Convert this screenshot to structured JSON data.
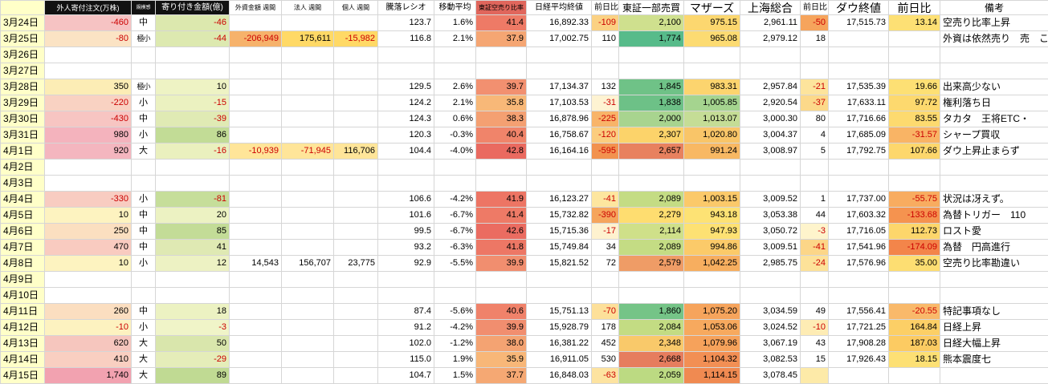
{
  "sheet": {
    "columns": [
      {
        "key": "date",
        "label": "",
        "hbg": "#ffffc8",
        "hsize": 11
      },
      {
        "key": "foreign-orders",
        "label": "外人寄付注文(万株)",
        "hbg": "#111111",
        "hfg": "#ffffff",
        "hsize": 9
      },
      {
        "key": "scale",
        "label": "規模感",
        "hbg": "#111111",
        "hfg": "#ffffff",
        "hsize": 6
      },
      {
        "key": "opening-amount",
        "label": "寄り付き金額(億)",
        "hbg": "#111111",
        "hfg": "#ffffff",
        "hsize": 10
      },
      {
        "key": "foreign-weekly",
        "label": "外資金額 週間",
        "hsize": 8
      },
      {
        "key": "corporate-weekly",
        "label": "法人 週間",
        "hsize": 8
      },
      {
        "key": "individual-weekly",
        "label": "個人 週間",
        "hsize": 8
      },
      {
        "key": "updown-ratio",
        "label": "騰落レシオ",
        "hsize": 10
      },
      {
        "key": "moving-average",
        "label": "移動平均",
        "hsize": 10
      },
      {
        "key": "short-sell-ratio",
        "label": "東証空売り比率",
        "hbg": "#e0665c",
        "hsize": 8
      },
      {
        "key": "nikkei-close",
        "label": "日経平均終値",
        "hsize": 10
      },
      {
        "key": "nikkei-change",
        "label": "前日比",
        "hsize": 10
      },
      {
        "key": "tse1-volume",
        "label": "東証一部売買",
        "hsize": 12
      },
      {
        "key": "mothers",
        "label": "マザーズ",
        "hsize": 14
      },
      {
        "key": "shanghai",
        "label": "上海総合",
        "hsize": 14
      },
      {
        "key": "shanghai-change",
        "label": "前日比",
        "hsize": 10
      },
      {
        "key": "dow-close",
        "label": "ダウ終値",
        "hsize": 14
      },
      {
        "key": "dow-change",
        "label": "前日比",
        "hsize": 14
      },
      {
        "key": "notes",
        "label": "備考",
        "hsize": 12
      }
    ],
    "rows": [
      [
        "3月24日",
        [
          "-460",
          "#f6c3c3",
          "#cc0000"
        ],
        "中",
        [
          "-46",
          "#dce8ae",
          "#cc0000"
        ],
        "",
        "",
        "",
        "123.7",
        "1.6%",
        [
          "41.4",
          "#ee7a66"
        ],
        "16,892.33",
        [
          "-109",
          "#fbd183",
          "#cc0000"
        ],
        [
          "2,100",
          "#cfe08e"
        ],
        [
          "975.15",
          "#fcd76f"
        ],
        "2,961.11",
        [
          "-50",
          "#f6a45c",
          "#cc0000"
        ],
        "17,515.73",
        [
          "13.14",
          "#fde074"
        ],
        "空売り比率上昇"
      ],
      [
        "3月25日",
        [
          "-80",
          "#fbe3c4",
          "#cc0000"
        ],
        [
          "極小",
          null,
          null,
          1
        ],
        [
          "-44",
          "#dde9b0",
          "#cc0000"
        ],
        [
          "-206,949",
          "#f6b26b",
          "#cc0000"
        ],
        [
          "175,611",
          "#ffd966"
        ],
        [
          "-15,982",
          "#ffd966",
          "#cc0000"
        ],
        "116.8",
        "2.1%",
        [
          "37.9",
          "#f5a673"
        ],
        "17,002.75",
        "110",
        [
          "1,774",
          "#57bb8a"
        ],
        [
          "965.08",
          "#fcdb72"
        ],
        "2,979.12",
        "18",
        "",
        "",
        [
          "外資は依然売り　売　これ大丈夫",
          null,
          null,
          1
        ]
      ],
      [
        "3月26日",
        "",
        "",
        "",
        "",
        "",
        "",
        "",
        "",
        "",
        "",
        "",
        "",
        "",
        "",
        "",
        "",
        "",
        ""
      ],
      [
        "3月27日",
        "",
        "",
        "",
        "",
        "",
        "",
        "",
        "",
        "",
        "",
        "",
        "",
        "",
        "",
        "",
        "",
        "",
        ""
      ],
      [
        "3月28日",
        [
          "350",
          "#fcedb5"
        ],
        [
          "極小",
          null,
          null,
          1
        ],
        [
          "10",
          "#eef3c4"
        ],
        "",
        "",
        "",
        "129.5",
        "2.6%",
        [
          "39.7",
          "#f29070"
        ],
        "17,134.37",
        "132",
        [
          "1,845",
          "#6fc287"
        ],
        [
          "983.31",
          "#fcd46e"
        ],
        "2,957.84",
        [
          "-21",
          "#fde49c",
          "#cc0000"
        ],
        "17,535.39",
        [
          "19.66",
          "#fde074"
        ],
        "出来高少ない"
      ],
      [
        "3月29日",
        [
          "-220",
          "#f9d2c2",
          "#cc0000"
        ],
        "小",
        [
          "-15",
          "#ebf1c0",
          "#cc0000"
        ],
        "",
        "",
        "",
        "124.2",
        "2.1%",
        [
          "35.8",
          "#f8b878"
        ],
        "17,103.53",
        [
          "-31",
          "#fef3d2",
          "#cc0000"
        ],
        [
          "1,838",
          "#6dc187"
        ],
        [
          "1,005.85",
          "#a5d48f"
        ],
        "2,920.54",
        [
          "-37",
          "#fcd98a",
          "#cc0000"
        ],
        "17,633.11",
        [
          "97.72",
          "#fdd96e"
        ],
        "権利落ち日"
      ],
      [
        "3月30日",
        [
          "-430",
          "#f7c5c2",
          "#cc0000"
        ],
        "中",
        [
          "-39",
          "#e0eab4",
          "#cc0000"
        ],
        "",
        "",
        "",
        "124.3",
        "0.6%",
        [
          "38.3",
          "#f4a072"
        ],
        "16,878.96",
        [
          "-225",
          "#f8b469",
          "#cc0000"
        ],
        [
          "2,000",
          "#a8d48f"
        ],
        [
          "1,013.07",
          "#c5dd96"
        ],
        "3,000.30",
        "80",
        "17,716.66",
        [
          "83.55",
          "#fdda6f"
        ],
        "タカタ　王将ETC・"
      ],
      [
        "3月31日",
        [
          "980",
          "#f4b3bd"
        ],
        "小",
        [
          "86",
          "#c2dc96"
        ],
        "",
        "",
        "",
        "120.3",
        "-0.3%",
        [
          "40.4",
          "#f0846a"
        ],
        "16,758.67",
        [
          "-120",
          "#fbcd7f",
          "#cc0000"
        ],
        [
          "2,307",
          "#fcd36a"
        ],
        [
          "1,020.80",
          "#f9c568"
        ],
        "3,004.37",
        "4",
        "17,685.09",
        [
          "-31.57",
          "#f9b465",
          "#cc0000"
        ],
        "シャープ買収"
      ],
      [
        "4月1日",
        [
          "920",
          "#f4b6bf"
        ],
        "大",
        [
          "-16",
          "#eaf0be",
          "#cc0000"
        ],
        [
          "-10,939",
          "#ffe599",
          "#cc0000"
        ],
        [
          "-71,945",
          "#ffe599",
          "#cc0000"
        ],
        [
          "116,706",
          "#ffe599"
        ],
        "104.4",
        "-4.0%",
        [
          "42.8",
          "#ea6a60"
        ],
        "16,164.16",
        [
          "-595",
          "#f2924f",
          "#cc0000"
        ],
        [
          "2,657",
          "#e8815f"
        ],
        [
          "991.24",
          "#f8b863"
        ],
        "3,008.97",
        "5",
        "17,792.75",
        [
          "107.66",
          "#fdd76c"
        ],
        "ダウ上昇止まらず"
      ],
      [
        "4月2日",
        "",
        "",
        "",
        "",
        "",
        "",
        "",
        "",
        "",
        "",
        "",
        "",
        "",
        "",
        "",
        "",
        "",
        ""
      ],
      [
        "4月3日",
        "",
        "",
        "",
        "",
        "",
        "",
        "",
        "",
        "",
        "",
        "",
        "",
        "",
        "",
        "",
        "",
        "",
        ""
      ],
      [
        "4月4日",
        [
          "-330",
          "#f8ccc1",
          "#cc0000"
        ],
        "小",
        [
          "-81",
          "#c6de9a",
          "#cc0000"
        ],
        "",
        "",
        "",
        "106.6",
        "-4.2%",
        [
          "41.9",
          "#ed7564"
        ],
        "16,123.27",
        [
          "-41",
          "#fde69f",
          "#cc0000"
        ],
        [
          "2,089",
          "#c4dc84"
        ],
        [
          "1,003.15",
          "#fbc96a"
        ],
        "3,009.52",
        "1",
        "17,737.00",
        [
          "-55.75",
          "#f8ac60",
          "#cc0000"
        ],
        "状況は冴えず。"
      ],
      [
        "4月5日",
        [
          "10",
          "#fdf3c0"
        ],
        "中",
        [
          "20",
          "#ecf2c2"
        ],
        "",
        "",
        "",
        "101.6",
        "-6.7%",
        [
          "41.4",
          "#ee7a66"
        ],
        "15,732.82",
        [
          "-390",
          "#f5a55c",
          "#cc0000"
        ],
        [
          "2,279",
          "#fedd70"
        ],
        [
          "943.18",
          "#fde274"
        ],
        "3,053.38",
        "44",
        "17,603.32",
        [
          "-133.68",
          "#f5934f",
          "#cc0000"
        ],
        "為替トリガー　110"
      ],
      [
        "4月6日",
        [
          "250",
          "#fbdfc0"
        ],
        "中",
        [
          "85",
          "#c3dc97"
        ],
        "",
        "",
        "",
        "99.5",
        "-6.7%",
        [
          "42.6",
          "#eb6c61"
        ],
        "15,715.36",
        [
          "-17",
          "#fef2cf",
          "#cc0000"
        ],
        [
          "2,114",
          "#cfe089"
        ],
        [
          "947.93",
          "#fde173"
        ],
        "3,050.72",
        [
          "-3",
          "#fef4cc",
          "#cc0000"
        ],
        "17,716.05",
        [
          "112.73",
          "#fdd66b"
        ],
        "ロスト愛"
      ],
      [
        "4月7日",
        [
          "470",
          "#f9cbc0"
        ],
        "中",
        [
          "41",
          "#dfe9b3"
        ],
        "",
        "",
        "",
        "93.2",
        "-6.3%",
        [
          "41.8",
          "#ed7765"
        ],
        "15,749.84",
        "34",
        [
          "2,089",
          "#c4dc84"
        ],
        [
          "994.86",
          "#fbca69"
        ],
        "3,009.51",
        [
          "-41",
          "#fcd688",
          "#cc0000"
        ],
        "17,541.96",
        [
          "-174.09",
          "#f3854a",
          "#cc0000"
        ],
        "為替　円高進行"
      ],
      [
        "4月8日",
        [
          "10",
          "#fdf3c0"
        ],
        "小",
        [
          "12",
          "#edf2c3"
        ],
        "14,543",
        "156,707",
        "23,775",
        "92.9",
        "-5.5%",
        [
          "39.9",
          "#f18e6f"
        ],
        "15,821.52",
        "72",
        [
          "2,579",
          "#ef9c66"
        ],
        [
          "1,042.25",
          "#f7ae5f"
        ],
        "2,985.75",
        [
          "-24",
          "#fde299",
          "#cc0000"
        ],
        "17,576.96",
        [
          "35.00",
          "#fdde72"
        ],
        "空売り比率勘違い"
      ],
      [
        "4月9日",
        "",
        "",
        "",
        "",
        "",
        "",
        "",
        "",
        "",
        "",
        "",
        "",
        "",
        "",
        "",
        "",
        "",
        ""
      ],
      [
        "4月10日",
        "",
        "",
        "",
        "",
        "",
        "",
        "",
        "",
        "",
        "",
        "",
        "",
        "",
        "",
        "",
        "",
        "",
        ""
      ],
      [
        "4月11日",
        [
          "260",
          "#fbdec0"
        ],
        "中",
        [
          "18",
          "#ecf2c2"
        ],
        "",
        "",
        "",
        "87.4",
        "-5.6%",
        [
          "40.6",
          "#f0826a"
        ],
        "15,751.13",
        [
          "-70",
          "#fde09a",
          "#cc0000"
        ],
        [
          "1,860",
          "#75c487"
        ],
        [
          "1,075.20",
          "#f6a45c"
        ],
        "3,034.59",
        "49",
        "17,556.41",
        [
          "-20.55",
          "#f9b96a",
          "#cc0000"
        ],
        "特記事項なし"
      ],
      [
        "4月12日",
        [
          "-10",
          "#fdf2c0",
          "#cc0000"
        ],
        "小",
        [
          "-3",
          "#f0f4c8",
          "#cc0000"
        ],
        "",
        "",
        "",
        "91.2",
        "-4.2%",
        [
          "39.9",
          "#f18e6f"
        ],
        "15,928.79",
        "178",
        [
          "2,084",
          "#c3dc83"
        ],
        [
          "1,053.06",
          "#f7a95e"
        ],
        "3,024.52",
        [
          "-10",
          "#feecb4",
          "#cc0000"
        ],
        "17,721.25",
        [
          "164.84",
          "#fccf66"
        ],
        "日経上昇"
      ],
      [
        "4月13日",
        [
          "620",
          "#f6c6be"
        ],
        "大",
        [
          "50",
          "#d9e6ac"
        ],
        "",
        "",
        "",
        "102.0",
        "-1.2%",
        [
          "38.0",
          "#f4a372"
        ],
        "16,381.22",
        "452",
        [
          "2,348",
          "#f9c96a"
        ],
        [
          "1,079.96",
          "#f6a25b"
        ],
        "3,067.19",
        "43",
        "17,908.28",
        [
          "187.03",
          "#fccb62"
        ],
        "日経大幅上昇"
      ],
      [
        "4月14日",
        [
          "410",
          "#f9cfc1"
        ],
        "大",
        [
          "-29",
          "#e5edb9",
          "#cc0000"
        ],
        "",
        "",
        "",
        "115.0",
        "1.9%",
        [
          "35.9",
          "#f8b778"
        ],
        "16,911.05",
        "530",
        [
          "2,668",
          "#e67d5e"
        ],
        [
          "1,104.32",
          "#f28f54"
        ],
        "3,082.53",
        "15",
        "17,926.43",
        [
          "18.15",
          "#fde074"
        ],
        "熊本震度七"
      ],
      [
        "4月15日",
        [
          "1,740",
          "#f2a2b0"
        ],
        "大",
        [
          "89",
          "#c0da93"
        ],
        "",
        "",
        "",
        "104.7",
        "1.5%",
        [
          "37.7",
          "#f5a873"
        ],
        "16,848.03",
        [
          "-63",
          "#fde3a0",
          "#cc0000"
        ],
        [
          "2,059",
          "#bcda82"
        ],
        [
          "1,114.15",
          "#f08a51"
        ],
        "3,078.45",
        [
          "",
          "#fdeaa8"
        ],
        "",
        "",
        ""
      ]
    ]
  }
}
